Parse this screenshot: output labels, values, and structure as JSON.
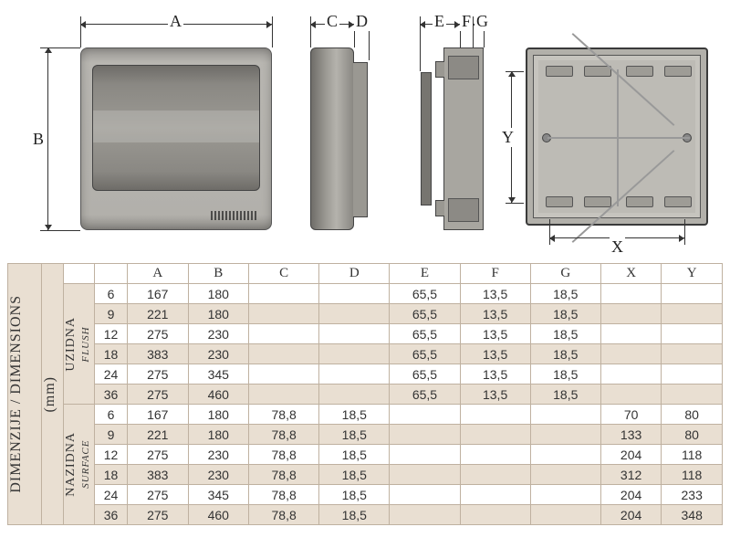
{
  "labels": {
    "A": "A",
    "B": "B",
    "C": "C",
    "D": "D",
    "E": "E",
    "F": "F",
    "G": "G",
    "X": "X",
    "Y": "Y",
    "main": "DIMENZIJE / DIMENSIONS",
    "unit": "(mm)",
    "flush": "UZIDNA",
    "flush_en": "FLUSH",
    "surface": "NAZIDNA",
    "surface_en": "SURFACE"
  },
  "columns": [
    "A",
    "B",
    "C",
    "D",
    "E",
    "F",
    "G",
    "X",
    "Y"
  ],
  "sections": [
    {
      "key": "flush",
      "rows": [
        {
          "k": "6",
          "A": "167",
          "B": "180",
          "C": "",
          "D": "",
          "E": "65,5",
          "F": "13,5",
          "G": "18,5",
          "X": "",
          "Y": ""
        },
        {
          "k": "9",
          "A": "221",
          "B": "180",
          "C": "",
          "D": "",
          "E": "65,5",
          "F": "13,5",
          "G": "18,5",
          "X": "",
          "Y": ""
        },
        {
          "k": "12",
          "A": "275",
          "B": "230",
          "C": "",
          "D": "",
          "E": "65,5",
          "F": "13,5",
          "G": "18,5",
          "X": "",
          "Y": ""
        },
        {
          "k": "18",
          "A": "383",
          "B": "230",
          "C": "",
          "D": "",
          "E": "65,5",
          "F": "13,5",
          "G": "18,5",
          "X": "",
          "Y": ""
        },
        {
          "k": "24",
          "A": "275",
          "B": "345",
          "C": "",
          "D": "",
          "E": "65,5",
          "F": "13,5",
          "G": "18,5",
          "X": "",
          "Y": ""
        },
        {
          "k": "36",
          "A": "275",
          "B": "460",
          "C": "",
          "D": "",
          "E": "65,5",
          "F": "13,5",
          "G": "18,5",
          "X": "",
          "Y": ""
        }
      ]
    },
    {
      "key": "surface",
      "rows": [
        {
          "k": "6",
          "A": "167",
          "B": "180",
          "C": "78,8",
          "D": "18,5",
          "E": "",
          "F": "",
          "G": "",
          "X": "70",
          "Y": "80"
        },
        {
          "k": "9",
          "A": "221",
          "B": "180",
          "C": "78,8",
          "D": "18,5",
          "E": "",
          "F": "",
          "G": "",
          "X": "133",
          "Y": "80"
        },
        {
          "k": "12",
          "A": "275",
          "B": "230",
          "C": "78,8",
          "D": "18,5",
          "E": "",
          "F": "",
          "G": "",
          "X": "204",
          "Y": "118"
        },
        {
          "k": "18",
          "A": "383",
          "B": "230",
          "C": "78,8",
          "D": "18,5",
          "E": "",
          "F": "",
          "G": "",
          "X": "312",
          "Y": "118"
        },
        {
          "k": "24",
          "A": "275",
          "B": "345",
          "C": "78,8",
          "D": "18,5",
          "E": "",
          "F": "",
          "G": "",
          "X": "204",
          "Y": "233"
        },
        {
          "k": "36",
          "A": "275",
          "B": "460",
          "C": "78,8",
          "D": "18,5",
          "E": "",
          "F": "",
          "G": "",
          "X": "204",
          "Y": "348"
        }
      ]
    }
  ],
  "style": {
    "band_bg": "#e9dfd2",
    "border": "#bfb1a0",
    "text": "#333333",
    "header_font": "Georgia",
    "body_font": "Arial",
    "header_size_pt": 11,
    "body_size_pt": 10
  }
}
